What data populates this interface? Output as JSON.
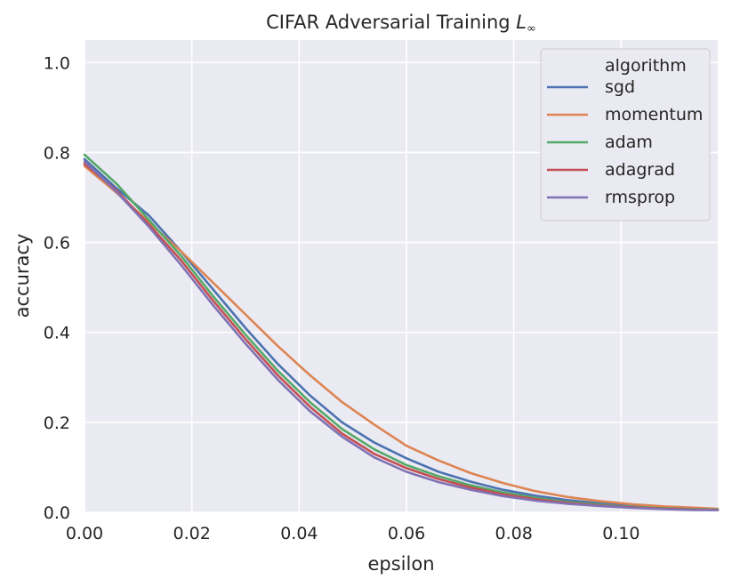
{
  "chart_data": {
    "type": "line",
    "title": "CIFAR Adversarial Training",
    "title_math": "L",
    "title_math_sub": "∞",
    "xlabel": "epsilon",
    "ylabel": "accuracy",
    "xlim": [
      0,
      0.118
    ],
    "ylim": [
      0,
      1.05
    ],
    "grid": true,
    "legend_location": "top-right",
    "legend_title": "algorithm",
    "xticks": [
      0,
      0.02,
      0.04,
      0.06,
      0.08,
      0.1
    ],
    "xtick_labels": [
      "0.00",
      "0.02",
      "0.04",
      "0.06",
      "0.08",
      "0.10"
    ],
    "yticks": [
      0,
      0.2,
      0.4,
      0.6,
      0.8,
      1.0
    ],
    "ytick_labels": [
      "0.0",
      "0.2",
      "0.4",
      "0.6",
      "0.8",
      "1.0"
    ],
    "x": [
      0,
      0.006,
      0.012,
      0.018,
      0.024,
      0.03,
      0.036,
      0.042,
      0.048,
      0.054,
      0.06,
      0.066,
      0.072,
      0.078,
      0.084,
      0.09,
      0.096,
      0.102,
      0.108,
      0.114,
      0.118
    ],
    "series": [
      {
        "name": "sgd",
        "color": "#4c72b0",
        "values": [
          0.785,
          0.72,
          0.66,
          0.58,
          0.495,
          0.41,
          0.33,
          0.26,
          0.2,
          0.155,
          0.12,
          0.09,
          0.068,
          0.05,
          0.037,
          0.027,
          0.02,
          0.014,
          0.01,
          0.008,
          0.007
        ]
      },
      {
        "name": "momentum",
        "color": "#dd8452",
        "values": [
          0.77,
          0.71,
          0.645,
          0.58,
          0.51,
          0.44,
          0.37,
          0.305,
          0.245,
          0.195,
          0.148,
          0.115,
          0.087,
          0.065,
          0.047,
          0.034,
          0.025,
          0.018,
          0.013,
          0.01,
          0.008
        ]
      },
      {
        "name": "adam",
        "color": "#55a868",
        "values": [
          0.795,
          0.73,
          0.65,
          0.57,
          0.48,
          0.395,
          0.315,
          0.245,
          0.185,
          0.14,
          0.105,
          0.08,
          0.06,
          0.044,
          0.032,
          0.023,
          0.017,
          0.012,
          0.009,
          0.007,
          0.006
        ]
      },
      {
        "name": "adagrad",
        "color": "#c44e52",
        "values": [
          0.775,
          0.715,
          0.64,
          0.56,
          0.47,
          0.385,
          0.305,
          0.235,
          0.175,
          0.13,
          0.098,
          0.074,
          0.055,
          0.04,
          0.029,
          0.021,
          0.015,
          0.011,
          0.008,
          0.006,
          0.005
        ]
      },
      {
        "name": "rmsprop",
        "color": "#8172b3",
        "values": [
          0.78,
          0.712,
          0.635,
          0.55,
          0.46,
          0.375,
          0.295,
          0.225,
          0.168,
          0.122,
          0.09,
          0.067,
          0.05,
          0.036,
          0.026,
          0.019,
          0.014,
          0.01,
          0.007,
          0.005,
          0.005
        ]
      }
    ]
  }
}
